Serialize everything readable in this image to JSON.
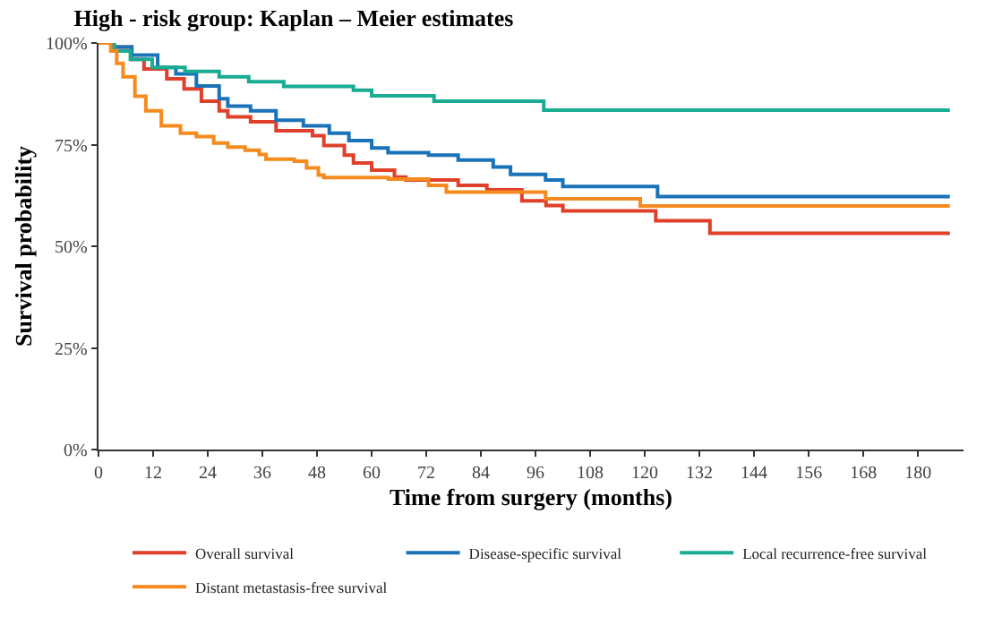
{
  "chart_data": {
    "type": "step",
    "title": "High - risk group: Kaplan – Meier estimates",
    "xlabel": "Time from surgery (months)",
    "ylabel": "Survival probability",
    "xlim": [
      0,
      190
    ],
    "xticks": [
      0,
      12,
      24,
      36,
      48,
      60,
      72,
      84,
      96,
      108,
      120,
      132,
      144,
      156,
      168,
      180
    ],
    "ylim": [
      0,
      100
    ],
    "yticks": [
      {
        "value": 0,
        "label": "0%"
      },
      {
        "value": 25,
        "label": "25%"
      },
      {
        "value": 50,
        "label": "50%"
      },
      {
        "value": 75,
        "label": "75%"
      },
      {
        "value": 100,
        "label": "100%"
      }
    ],
    "legend": "bottom",
    "marker": "none",
    "line_style": "solid",
    "series": [
      {
        "name": "Overall survival",
        "color": "#e0402a",
        "x": [
          0,
          3,
          7.3,
          10,
          15,
          18.8,
          22.6,
          26.5,
          28.4,
          33.4,
          39,
          47,
          49.5,
          54,
          56,
          60,
          65,
          67.5,
          79,
          85.3,
          93,
          98.3,
          102,
          122.4,
          134.3,
          187
        ],
        "values": [
          100,
          99,
          96,
          93.6,
          91.2,
          88.7,
          85.7,
          83.3,
          81.8,
          80.6,
          78.4,
          77.2,
          74.8,
          72.4,
          70.5,
          68.7,
          67,
          66.3,
          65,
          63.9,
          61.2,
          60,
          58.7,
          56.3,
          53.2,
          53.2
        ]
      },
      {
        "name": "Disease-specific survival",
        "color": "#1a72b8",
        "x": [
          0,
          3,
          7.3,
          13,
          17,
          21.5,
          26.5,
          28.4,
          33.4,
          39,
          45,
          50.7,
          55,
          60,
          63.6,
          72.5,
          79,
          86.7,
          90.5,
          98.2,
          102,
          122.8,
          187
        ],
        "values": [
          100,
          99,
          97,
          94,
          92.4,
          89.4,
          86.3,
          84.5,
          83.3,
          81,
          79.6,
          77.8,
          76,
          74.2,
          73,
          72.4,
          71.2,
          69.5,
          67.7,
          66.3,
          64.7,
          62.2,
          62.2
        ]
      },
      {
        "name": "Local recurrence-free survival",
        "color": "#1aab93",
        "x": [
          0,
          3.5,
          7,
          11.8,
          19,
          26.5,
          33,
          40.7,
          56,
          60,
          73.7,
          97.8,
          187
        ],
        "values": [
          100,
          98,
          96,
          94,
          93,
          91.7,
          90.5,
          89.3,
          88.4,
          87,
          85.7,
          83.5,
          83.5
        ]
      },
      {
        "name": "Distant metastasis-free survival",
        "color": "#f58a1f",
        "x": [
          0,
          2.7,
          4,
          5.4,
          8,
          10.4,
          13.8,
          18,
          21.5,
          25.3,
          28.4,
          32.2,
          35.3,
          36.8,
          43,
          45.7,
          48.3,
          49.5,
          63.7,
          72.5,
          76.4,
          98.2,
          119,
          187
        ],
        "values": [
          100,
          98,
          95,
          91.7,
          86.9,
          83.3,
          79.6,
          77.8,
          77,
          75.4,
          74.4,
          73.6,
          72.6,
          71.4,
          70.9,
          69.3,
          67.5,
          66.9,
          66.5,
          65,
          63.3,
          61.7,
          59.9,
          59.9
        ]
      }
    ]
  }
}
